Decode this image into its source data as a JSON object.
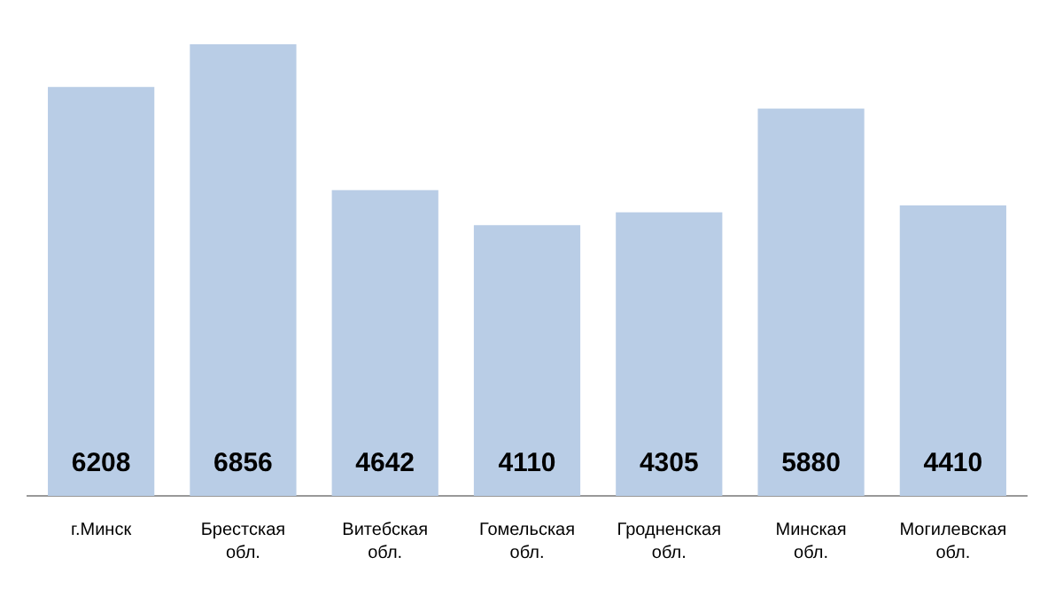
{
  "chart_data": {
    "type": "bar",
    "categories": [
      "г.Минск",
      "Брестская обл.",
      "Витебская обл.",
      "Гомельская обл.",
      "Гродненская обл.",
      "Минская обл.",
      "Могилевская обл."
    ],
    "values": [
      6208,
      6856,
      4642,
      4110,
      4305,
      5880,
      4410
    ],
    "color": "#b9cde6",
    "data_labels": true
  }
}
